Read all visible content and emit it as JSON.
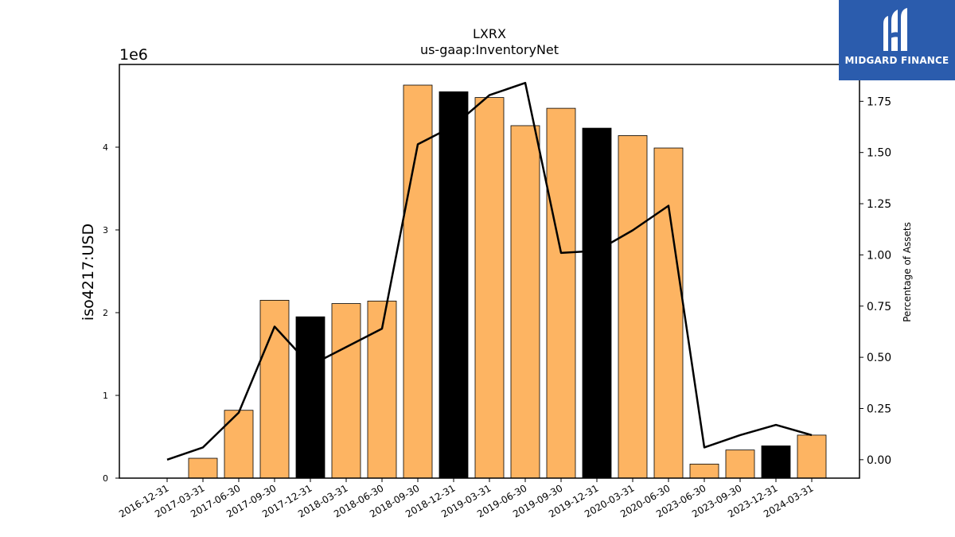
{
  "chart_data": {
    "type": "bar",
    "title": "LXRX",
    "subtitle": "us-gaap:InventoryNet",
    "ylabel": "iso4217:USD",
    "y2label": "Percentage of Assets",
    "y_multiplier_label": "1e6",
    "categories": [
      "2016-12-31",
      "2017-03-31",
      "2017-06-30",
      "2017-09-30",
      "2017-12-31",
      "2018-03-31",
      "2018-06-30",
      "2018-09-30",
      "2018-12-31",
      "2019-03-31",
      "2019-06-30",
      "2019-09-30",
      "2019-12-31",
      "2020-03-31",
      "2020-06-30",
      "2023-06-30",
      "2023-09-30",
      "2023-12-31",
      "2024-03-31"
    ],
    "ylim": [
      0,
      5000000
    ],
    "y_ticks": [
      0,
      1,
      2,
      3,
      4
    ],
    "y2lim": [
      -0.09,
      1.93
    ],
    "y2_ticks": [
      0.0,
      0.25,
      0.5,
      0.75,
      1.0,
      1.25,
      1.5,
      1.75
    ],
    "series": [
      {
        "kind": "bar",
        "values": [
          0,
          240000,
          820000,
          2150000,
          1950000,
          2110000,
          2140000,
          4750000,
          4670000,
          4600000,
          4260000,
          4470000,
          4230000,
          4140000,
          3990000,
          170000,
          340000,
          390000,
          520000
        ],
        "highlight": [
          false,
          false,
          false,
          false,
          true,
          false,
          false,
          false,
          true,
          false,
          false,
          false,
          true,
          false,
          false,
          false,
          false,
          true,
          false
        ]
      },
      {
        "kind": "line",
        "axis": "y2",
        "values": [
          0.0,
          0.06,
          0.23,
          0.65,
          0.46,
          0.55,
          0.64,
          1.54,
          1.63,
          1.78,
          1.84,
          1.01,
          1.02,
          1.12,
          1.24,
          0.06,
          0.12,
          0.17,
          0.12
        ]
      }
    ],
    "colors": {
      "bar": "#fdb462",
      "bar_highlight": "#000000",
      "line": "#000000"
    },
    "grid": false
  },
  "logo": {
    "text": "MIDGARD FINANCE",
    "icon": "midgard-logo-icon",
    "bg": "#2b5cad"
  }
}
